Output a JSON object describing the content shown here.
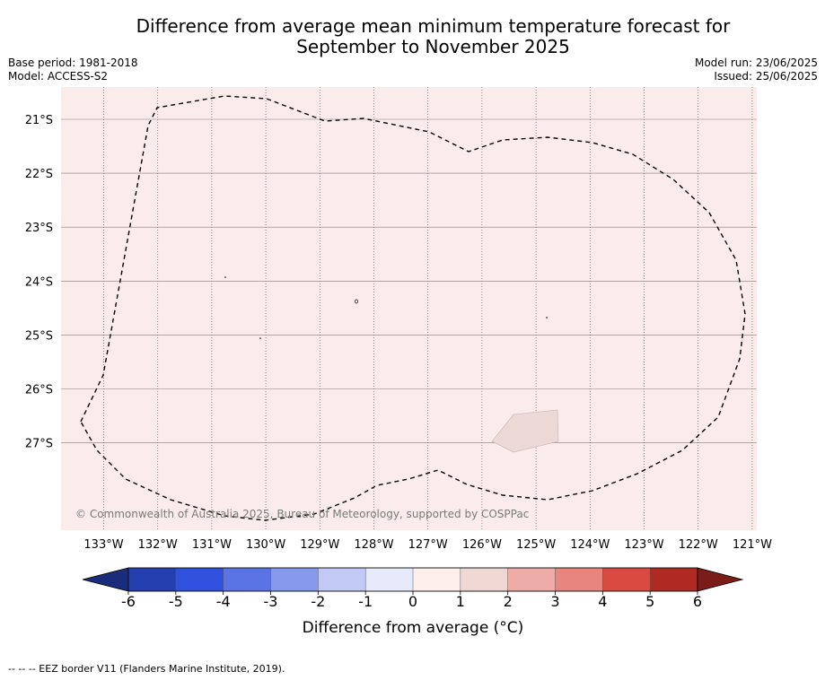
{
  "title": {
    "line1": "Difference from average mean minimum temperature forecast for",
    "line2": "September to November 2025"
  },
  "meta": {
    "base_period": "Base period: 1981-2018",
    "model": "Model: ACCESS-S2",
    "model_run": "Model run: 23/06/2025",
    "issued": "Issued: 25/06/2025"
  },
  "map": {
    "background_color": "#fbeceb",
    "anomaly_patch_color": "#ecd8d5",
    "lon_labels": [
      "133°W",
      "132°W",
      "131°W",
      "130°W",
      "129°W",
      "128°W",
      "127°W",
      "126°W",
      "125°W",
      "124°W",
      "123°W",
      "122°W",
      "121°W"
    ],
    "lat_labels": [
      "21°S",
      "22°S",
      "23°S",
      "24°S",
      "25°S",
      "26°S",
      "27°S"
    ],
    "copyright": "© Commonwealth of Australia 2025, Bureau of Meteorology, supported by COSPPac"
  },
  "colorbar": {
    "ticks": [
      "-6",
      "-5",
      "-4",
      "-3",
      "-2",
      "-1",
      "0",
      "1",
      "2",
      "3",
      "4",
      "5",
      "6"
    ],
    "colors": [
      "#2440b0",
      "#2f51dd",
      "#5a73e5",
      "#8799ec",
      "#c2c9f4",
      "#e7eafb",
      "#fdefec",
      "#efd8d4",
      "#eeaca7",
      "#e8857e",
      "#db4a40",
      "#ae2a22"
    ],
    "under_color": "#1a2d7c",
    "over_color": "#7a1d18",
    "label": "Difference from average (°C)"
  },
  "footer": {
    "legend": "--  --  -- EEZ border V11 (Flanders Marine Institute, 2019)."
  }
}
